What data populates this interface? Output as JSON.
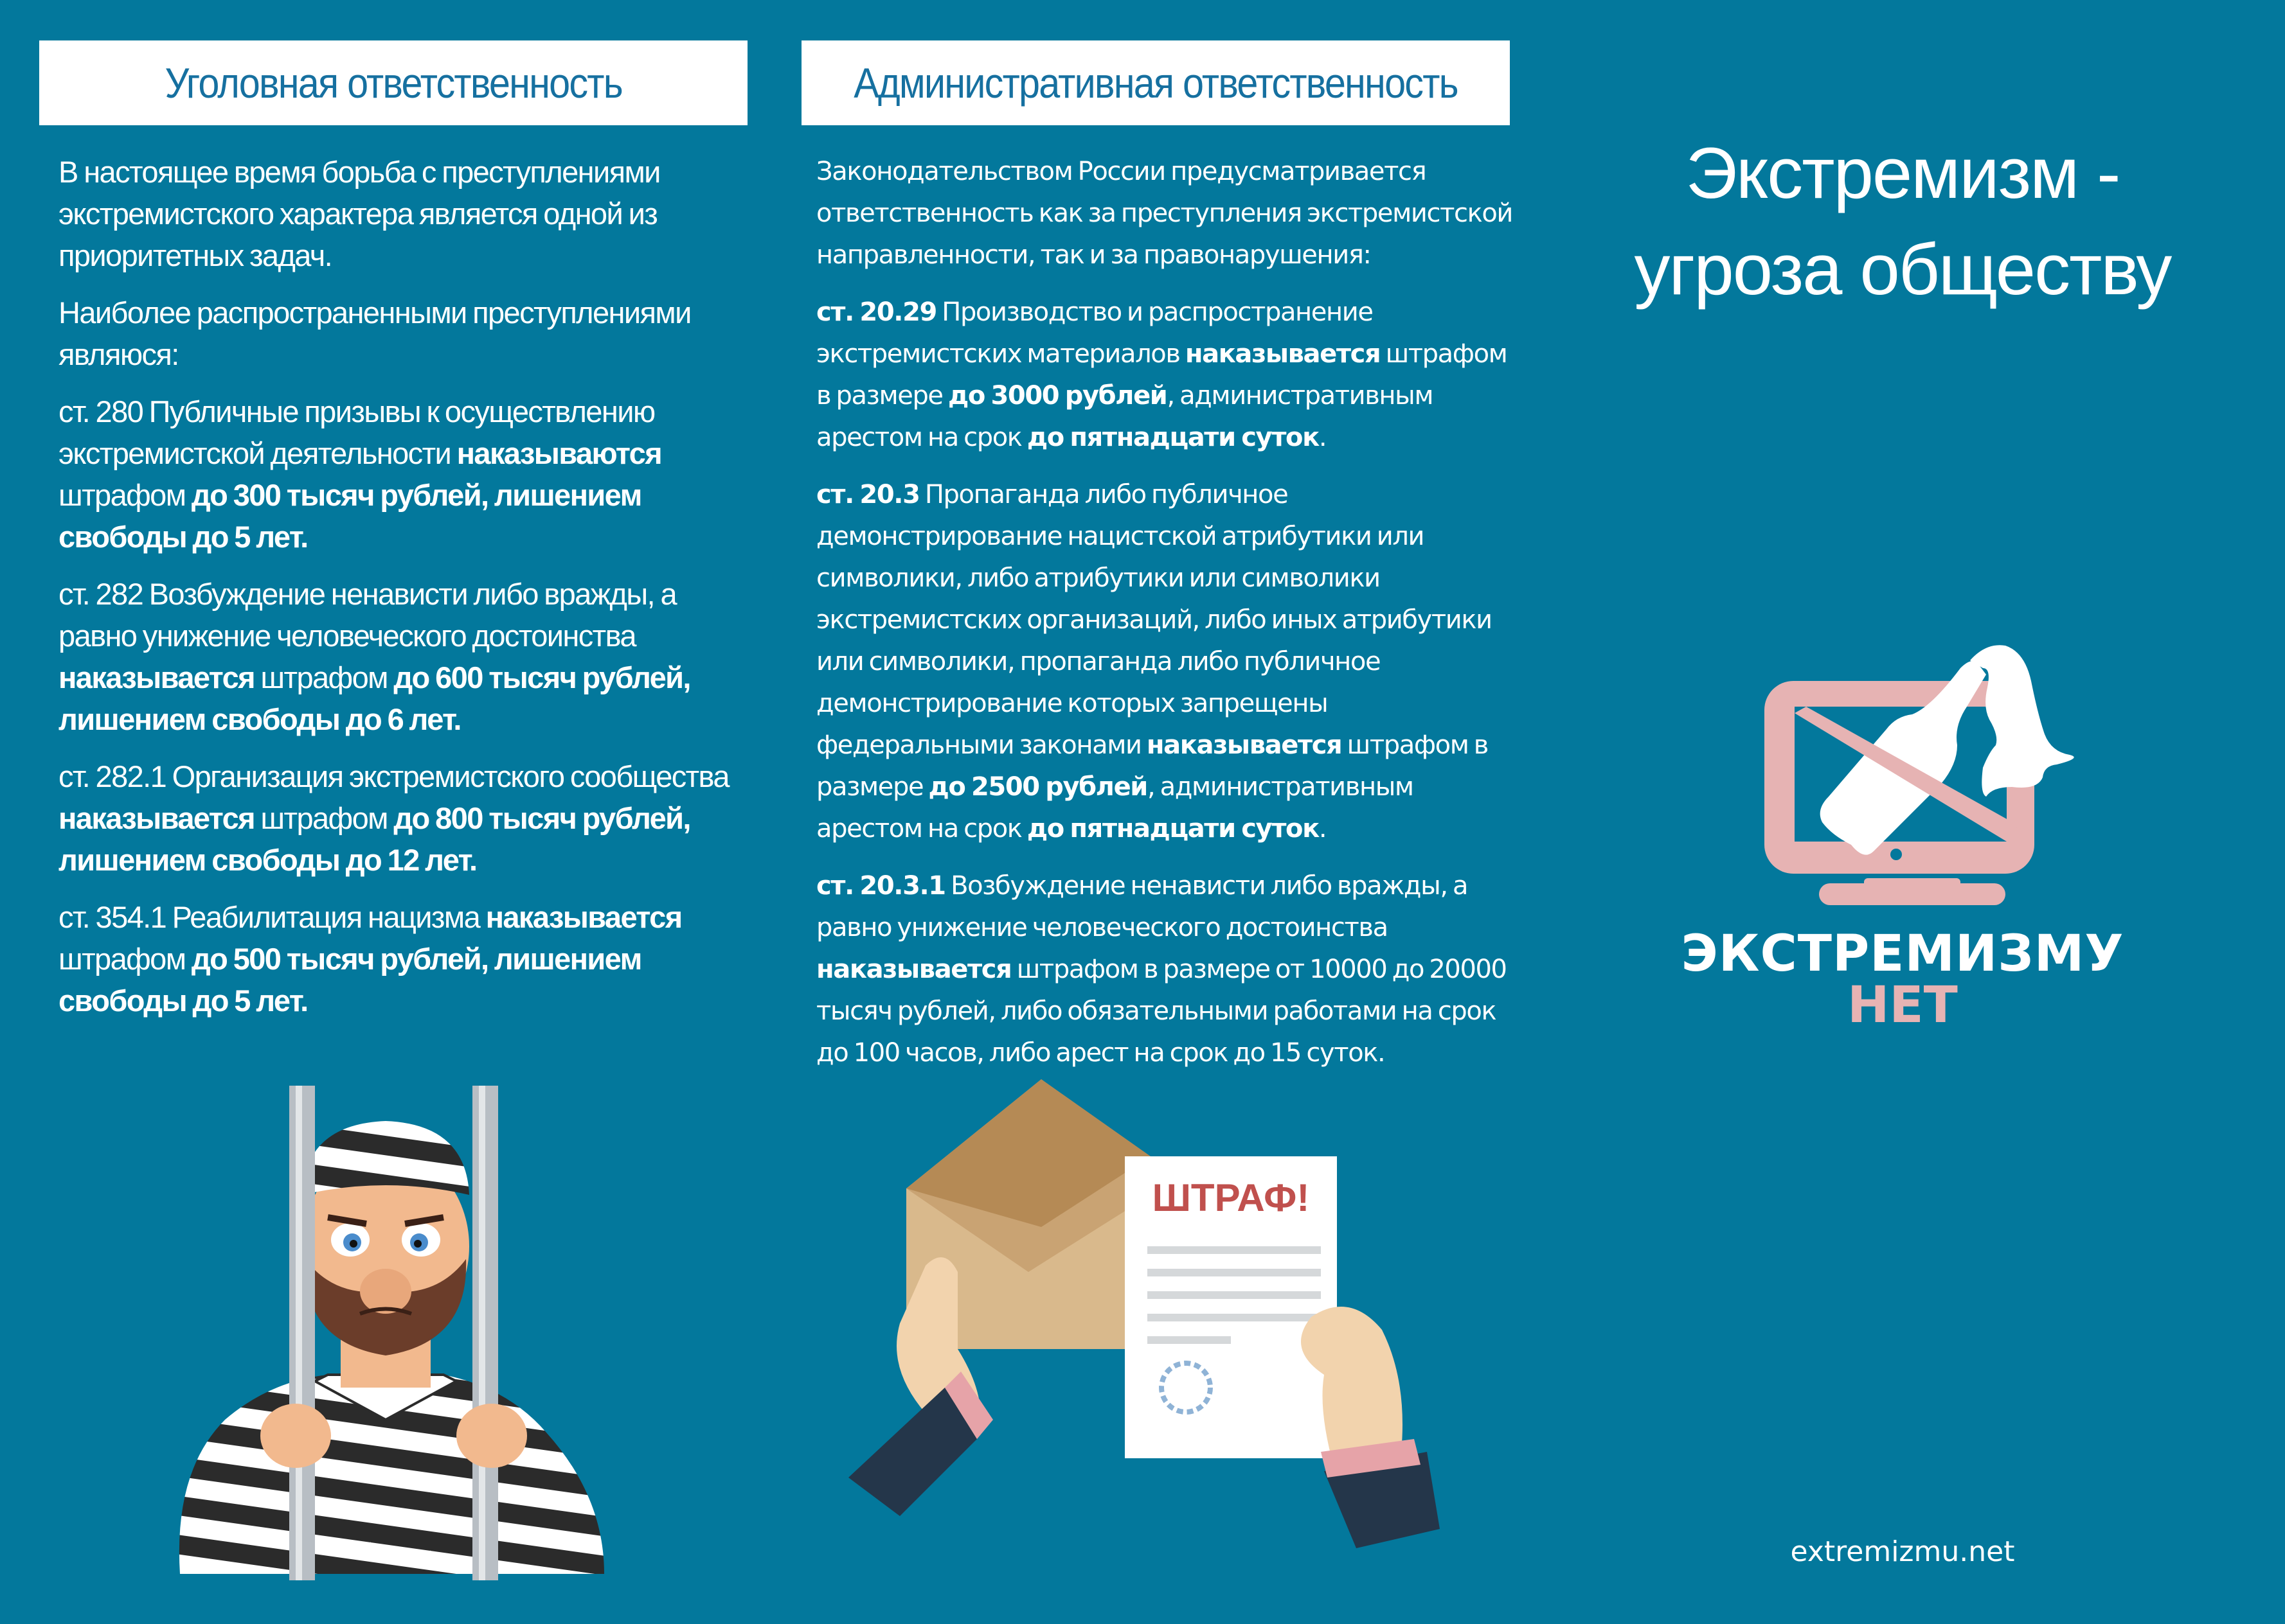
{
  "colors": {
    "background": "#03789c",
    "header_text": "#1670a0",
    "accent_pink": "#e6b3b3",
    "fine_red": "#c0504d"
  },
  "left": {
    "header": "Уголовная ответственность",
    "paragraphs": [
      [
        {
          "t": "В настоящее время борьба с преступлениями экстремистского характера является одной из приоритетных задач.",
          "b": false
        }
      ],
      [
        {
          "t": "Наиболее распространенными преступлениями являюся:",
          "b": false
        }
      ],
      [
        {
          "t": "ст. 280",
          "b": false
        },
        {
          "t": " Публичные призывы к осуществлению экстремистской деятельности ",
          "b": false
        },
        {
          "t": "наказываются",
          "b": true
        },
        {
          "t": " штрафом ",
          "b": false
        },
        {
          "t": "до 300 тысяч рублей, лишением свободы до 5 лет.",
          "b": true
        }
      ],
      [
        {
          "t": "ст. 282",
          "b": false
        },
        {
          "t": " Возбуждение ненависти либо вражды, а равно унижение человеческого достоинства ",
          "b": false
        },
        {
          "t": "наказывается",
          "b": true
        },
        {
          "t": " штрафом ",
          "b": false
        },
        {
          "t": "до 600 тысяч рублей, лишением свободы до 6 лет.",
          "b": true
        }
      ],
      [
        {
          "t": "ст. 282.1",
          "b": false
        },
        {
          "t": " Организация экстремистского сообщества ",
          "b": false
        },
        {
          "t": "наказывается",
          "b": true
        },
        {
          "t": " штрафом ",
          "b": false
        },
        {
          "t": "до 800 тысяч рублей, лишением свободы до 12 лет.",
          "b": true
        }
      ],
      [
        {
          "t": "ст. 354.1",
          "b": false
        },
        {
          "t": " Реабилитация нацизма ",
          "b": false
        },
        {
          "t": "наказывается",
          "b": true
        },
        {
          "t": " штрафом ",
          "b": false
        },
        {
          "t": "до 500 тысяч рублей, лишением свободы до 5 лет.",
          "b": true
        }
      ]
    ]
  },
  "middle": {
    "header": "Административная ответственность",
    "paragraphs": [
      [
        {
          "t": "Законодательством России предусматривается ответственность как за преступления экстремистской направленности, так и за правонарушения:",
          "b": false
        }
      ],
      [
        {
          "t": "ст. 20.29",
          "b": true
        },
        {
          "t": " Производство и распространение экстремистских материалов ",
          "b": false
        },
        {
          "t": "наказывается",
          "b": true
        },
        {
          "t": " штрафом в размере ",
          "b": false
        },
        {
          "t": "до 3000 рублей",
          "b": true
        },
        {
          "t": ", административным арестом на срок ",
          "b": false
        },
        {
          "t": "до пятнадцати суток",
          "b": true
        },
        {
          "t": ".",
          "b": false
        }
      ],
      [
        {
          "t": "ст. 20.3",
          "b": true
        },
        {
          "t": " Пропаганда либо публичное демонстрирование нацистской атрибутики или символики, либо атрибутики или символики экстремистских организаций, либо иных атрибутики или символики, пропаганда либо публичное демонстрирование которых запрещены федеральными законами ",
          "b": false
        },
        {
          "t": "наказывается",
          "b": true
        },
        {
          "t": " штрафом в размере ",
          "b": false
        },
        {
          "t": "до 2500 рублей",
          "b": true
        },
        {
          "t": ", административным арестом на срок ",
          "b": false
        },
        {
          "t": "до пятнадцати суток",
          "b": true
        },
        {
          "t": ".",
          "b": false
        }
      ],
      [
        {
          "t": "ст. 20.3.1",
          "b": true
        },
        {
          "t": " Возбуждение ненависти либо вражды, а равно унижение человеческого достоинства ",
          "b": false
        },
        {
          "t": "наказывается",
          "b": true
        },
        {
          "t": " штрафом в размере от 10000 до 20000 тысяч рублей, либо обязательными работами на срок до 100 часов, либо арест на срок до 15 суток.",
          "b": false
        }
      ]
    ],
    "fine_label": "ШТРАФ!"
  },
  "right": {
    "title_line1": "Экстремизм -",
    "title_line2": "угроза обществу",
    "logo_line1": "ЭКСТРЕМИЗМУ",
    "logo_line2": "НЕТ",
    "website": "extremizmu.net"
  },
  "icons": {
    "logo": "tv-molotov-crossed-icon",
    "prisoner": "prisoner-illustration",
    "fine": "fine-letter-illustration"
  }
}
